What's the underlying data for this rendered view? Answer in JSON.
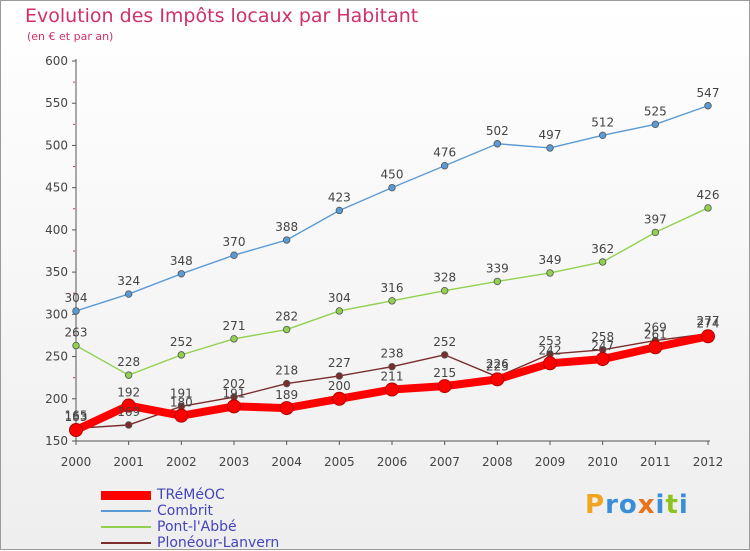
{
  "title": "Evolution des Impôts locaux par Habitant",
  "subtitle": "(en € et par an)",
  "logo": {
    "text": "Proxiti",
    "colors": [
      "#f2a620",
      "#3a8ed8",
      "#3a8ed8",
      "#e8731a",
      "#3a8ed8",
      "#8fc31f",
      "#3a8ed8"
    ]
  },
  "chart_data": {
    "type": "line",
    "title": "Evolution des Impôts locaux par Habitant",
    "subtitle": "(en € et par an)",
    "x": [
      "2000",
      "2001",
      "2002",
      "2003",
      "2004",
      "2005",
      "2006",
      "2007",
      "2008",
      "2009",
      "2010",
      "2011",
      "2012"
    ],
    "ylim": [
      150,
      600
    ],
    "yticks": [
      150,
      200,
      250,
      300,
      350,
      400,
      450,
      500,
      550,
      600
    ],
    "grid": false,
    "legend_position": "bottom-left",
    "series": [
      {
        "name": "TRéMéOC",
        "color": "#ff0000",
        "values": [
          163,
          192,
          180,
          191,
          189,
          200,
          211,
          215,
          223,
          242,
          247,
          261,
          274
        ],
        "labels": [
          "163",
          "192",
          "180",
          "191",
          "189",
          "200",
          "211",
          "215",
          "223",
          "242",
          "247",
          "261",
          "274"
        ]
      },
      {
        "name": "Combrit",
        "color": "#5b9bd5",
        "values": [
          304,
          324,
          348,
          370,
          388,
          423,
          450,
          476,
          502,
          497,
          512,
          525,
          547
        ],
        "labels": [
          "304",
          "324",
          "348",
          "370",
          "388",
          "423",
          "450",
          "476",
          "502",
          "497",
          "512",
          "525",
          "547"
        ]
      },
      {
        "name": "Pont-l'Abbé",
        "color": "#92d050",
        "values": [
          263,
          228,
          252,
          271,
          282,
          304,
          316,
          328,
          339,
          349,
          362,
          397,
          426
        ],
        "labels": [
          "263",
          "228",
          "252",
          "271",
          "282",
          "304",
          "316",
          "328",
          "339",
          "349",
          "362",
          "397",
          "426"
        ]
      },
      {
        "name": "Plonéour-Lanvern",
        "color": "#7b2c2c",
        "values": [
          165,
          169,
          191,
          202,
          218,
          227,
          238,
          252,
          226,
          253,
          258,
          269,
          277
        ],
        "labels": [
          "165",
          "169",
          "191",
          "202",
          "218",
          "227",
          "238",
          "252",
          "226",
          "253",
          "258",
          "269",
          "277"
        ]
      }
    ]
  }
}
